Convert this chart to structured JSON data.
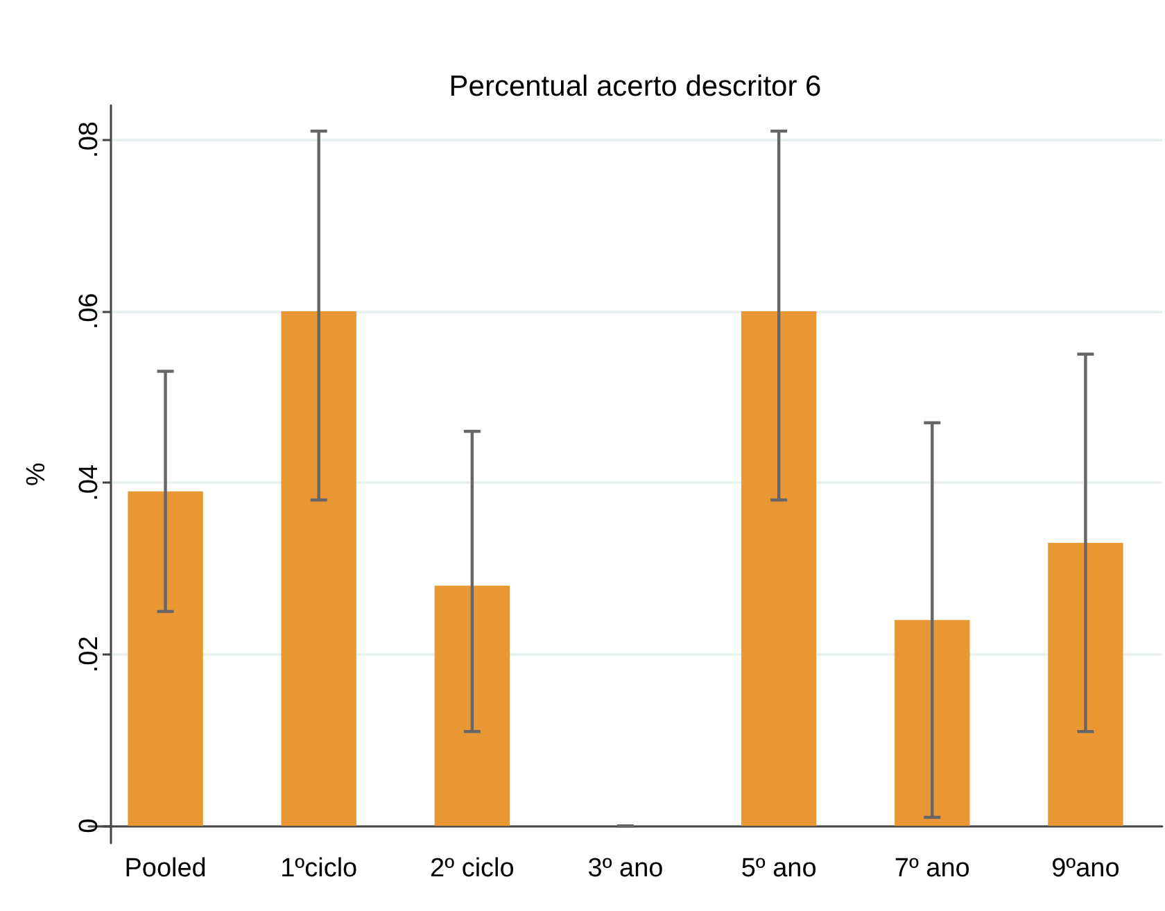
{
  "chart_data": {
    "type": "bar",
    "title": "Percentual acerto descritor 6",
    "ylabel": "%",
    "categories": [
      "Pooled",
      "1ºciclo",
      "2º ciclo",
      "3º ano",
      "5º ano",
      "7º ano",
      "9ºano"
    ],
    "values": [
      0.039,
      0.06,
      0.028,
      0,
      0.06,
      0.024,
      0.033
    ],
    "errors": [
      [
        0.025,
        0.053
      ],
      [
        0.038,
        0.081
      ],
      [
        0.011,
        0.046
      ],
      [
        0,
        0
      ],
      [
        0.038,
        0.081
      ],
      [
        0.001,
        0.047
      ],
      [
        0.011,
        0.055
      ]
    ],
    "color": "#e99735",
    "ylim": [
      -0.002,
      0.084
    ],
    "yticks": [
      0,
      {
        "value": 0.02,
        "label": ".02"
      },
      {
        "value": 0.04,
        "label": ".04"
      },
      {
        "value": 0.06,
        "label": ".06"
      },
      {
        "value": 0.08,
        "label": ".08"
      }
    ],
    "grid": "y"
  }
}
